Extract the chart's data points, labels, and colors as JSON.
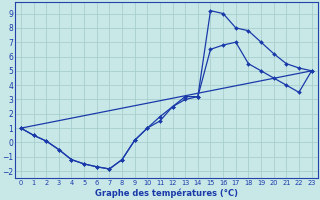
{
  "title": "Graphe des températures (°C)",
  "bg_color": "#c8e8e8",
  "grid_color": "#a8cece",
  "line_color": "#1a3aaa",
  "axis_color": "#2244aa",
  "xlim": [
    -0.5,
    23.5
  ],
  "ylim": [
    -2.5,
    9.8
  ],
  "xticks": [
    0,
    1,
    2,
    3,
    4,
    5,
    6,
    7,
    8,
    9,
    10,
    11,
    12,
    13,
    14,
    15,
    16,
    17,
    18,
    19,
    20,
    21,
    22,
    23
  ],
  "yticks": [
    -2,
    -1,
    0,
    1,
    2,
    3,
    4,
    5,
    6,
    7,
    8,
    9
  ],
  "s1x": [
    0,
    1,
    2,
    3,
    4,
    5,
    6,
    7,
    8,
    9,
    10,
    11,
    12,
    13,
    14,
    15,
    16,
    17,
    18,
    19,
    20,
    21,
    22,
    23
  ],
  "s1y": [
    1.0,
    0.5,
    0.1,
    -0.5,
    -1.2,
    -1.5,
    -1.7,
    -1.85,
    -1.2,
    0.15,
    1.0,
    1.5,
    2.5,
    3.0,
    3.2,
    9.2,
    9.0,
    8.0,
    7.8,
    7.0,
    6.2,
    5.5,
    5.2,
    5.0
  ],
  "s2x": [
    0,
    1,
    2,
    3,
    4,
    5,
    6,
    7,
    8,
    9,
    10,
    11,
    12,
    13,
    14,
    15,
    16,
    17,
    18,
    19,
    20,
    21,
    22,
    23
  ],
  "s2y": [
    1.0,
    0.5,
    0.1,
    -0.5,
    -1.2,
    -1.5,
    -1.7,
    -1.85,
    -1.2,
    0.15,
    1.0,
    1.8,
    2.5,
    3.2,
    3.2,
    6.5,
    6.8,
    7.0,
    5.5,
    5.0,
    4.5,
    4.0,
    3.5,
    5.0
  ],
  "s3x": [
    0,
    23
  ],
  "s3y": [
    1.0,
    5.0
  ]
}
